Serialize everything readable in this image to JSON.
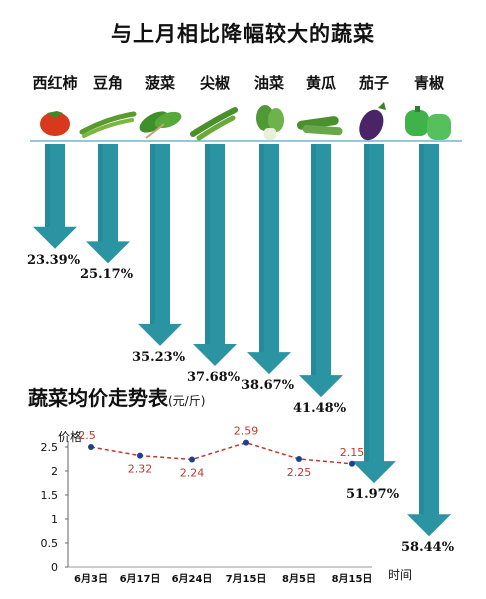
{
  "title": "与上月相比降幅较大的蔬菜",
  "colors": {
    "arrow": "#2a94a2",
    "arrow_dark": "#1e7b88",
    "baseline": "#6fb7c8",
    "trend_line": "#c0392b",
    "trend_point": "#1f3f8f",
    "value_label": "#c0392b"
  },
  "chart_data": [
    {
      "type": "bar",
      "title": "与上月相比降幅较大的蔬菜",
      "categories": [
        "西红柿",
        "豆角",
        "菠菜",
        "尖椒",
        "油菜",
        "黄瓜",
        "茄子",
        "青椒"
      ],
      "values": [
        23.39,
        25.17,
        35.23,
        37.68,
        38.67,
        41.48,
        51.97,
        58.44
      ],
      "value_labels": [
        "23.39%",
        "25.17%",
        "35.23%",
        "37.68%",
        "38.67%",
        "41.48%",
        "51.97%",
        "58.44%"
      ],
      "icons": [
        "tomato-icon",
        "green-bean-icon",
        "spinach-icon",
        "pepper-icon",
        "bok-choy-icon",
        "cucumber-icon",
        "eggplant-icon",
        "bell-pepper-icon"
      ]
    },
    {
      "type": "line",
      "title": "蔬菜均价走势表",
      "unit": "(元/斤)",
      "ylabel": "价格",
      "xlabel": "时间",
      "x": [
        "6月3日",
        "6月17日",
        "6月24日",
        "7月15日",
        "8月5日",
        "8月15日"
      ],
      "values": [
        2.5,
        2.32,
        2.24,
        2.59,
        2.25,
        2.15
      ],
      "ylim": [
        0,
        2.5
      ],
      "yticks": [
        "0",
        "0.5",
        "1",
        "1.5",
        "2",
        "2.5"
      ]
    }
  ]
}
